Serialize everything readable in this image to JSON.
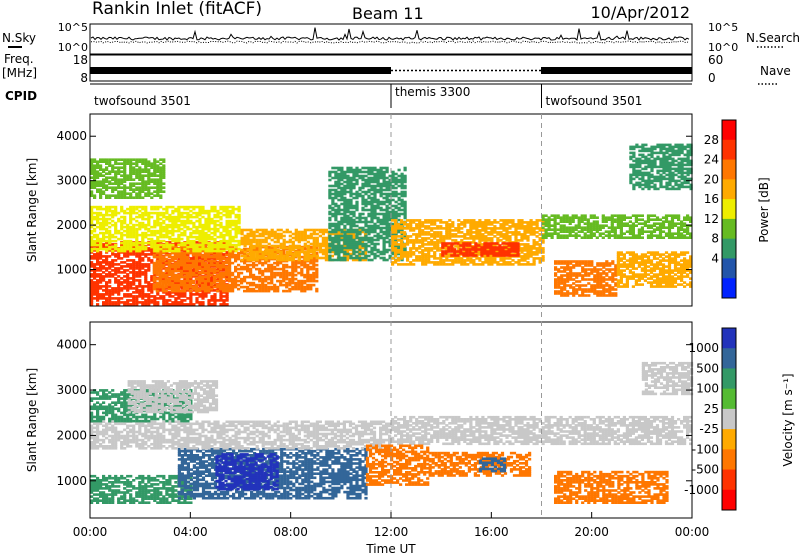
{
  "header": {
    "station": "Rankin Inlet (fitACF)",
    "beam": "Beam 11",
    "date": "10/Apr/2012"
  },
  "noise_panel": {
    "left_label": "N.Sky",
    "right_label": "N.Search",
    "left_ticks": [
      "10^5",
      "10^0"
    ],
    "right_ticks": [
      "10^5",
      "10^0"
    ]
  },
  "freq_panel": {
    "left_label": "Freq.",
    "left_unit": "[MHz]",
    "right_label": "Nave",
    "left_ticks": [
      "18",
      "8"
    ],
    "right_ticks": [
      "60",
      "0"
    ]
  },
  "cpid_panel": {
    "label": "CPID",
    "segments": [
      {
        "name": "twofsound 3501",
        "start_hour": 0,
        "end_hour": 12
      },
      {
        "name": "themis 3300",
        "start_hour": 12,
        "end_hour": 18
      },
      {
        "name": "twofsound 3501",
        "start_hour": 18,
        "end_hour": 24
      }
    ]
  },
  "x_axis": {
    "label": "Time UT",
    "ticks": [
      "00:00",
      "04:00",
      "08:00",
      "12:00",
      "16:00",
      "20:00",
      "00:00"
    ]
  },
  "chart_data": [
    {
      "type": "heatmap",
      "quantity": "Power",
      "colorbar_label": "Power [dB]",
      "colorbar_ticks": [
        "28",
        "24",
        "20",
        "16",
        "12",
        "8",
        "4"
      ],
      "colorbar_colors": [
        "#ff0000",
        "#ff3300",
        "#ff7700",
        "#ffaa00",
        "#eeee00",
        "#66bb22",
        "#339966",
        "#2255aa",
        "#0022ff"
      ],
      "ylabel": "Slant Range [km]",
      "yticks": [
        "4000",
        "3000",
        "2000",
        "1000"
      ],
      "ylim": [
        180,
        4500
      ],
      "xlim_hours": [
        0,
        24
      ],
      "regions": [
        {
          "t0": 0.0,
          "t1": 5.5,
          "r0": 200,
          "r1": 1600,
          "level": 28
        },
        {
          "t0": 2.5,
          "t1": 9.0,
          "r0": 500,
          "r1": 1500,
          "level": 24
        },
        {
          "t0": 0.0,
          "t1": 6.0,
          "r0": 1400,
          "r1": 2400,
          "level": 16
        },
        {
          "t0": 6.0,
          "t1": 11.0,
          "r0": 1200,
          "r1": 1900,
          "level": 20
        },
        {
          "t0": 9.5,
          "t1": 12.5,
          "r0": 1200,
          "r1": 3300,
          "level": 6
        },
        {
          "t0": 12.0,
          "t1": 18.0,
          "r0": 1100,
          "r1": 2100,
          "level": 20
        },
        {
          "t0": 14.0,
          "t1": 17.0,
          "r0": 1300,
          "r1": 1600,
          "level": 26
        },
        {
          "t0": 18.0,
          "t1": 24.0,
          "r0": 1700,
          "r1": 2200,
          "level": 12
        },
        {
          "t0": 18.5,
          "t1": 21.0,
          "r0": 400,
          "r1": 1200,
          "level": 24
        },
        {
          "t0": 21.0,
          "t1": 24.0,
          "r0": 600,
          "r1": 1400,
          "level": 20
        },
        {
          "t0": 0.0,
          "t1": 3.0,
          "r0": 2600,
          "r1": 3500,
          "level": 10
        },
        {
          "t0": 21.5,
          "t1": 24.0,
          "r0": 2800,
          "r1": 3800,
          "level": 8
        }
      ]
    },
    {
      "type": "heatmap",
      "quantity": "Velocity",
      "colorbar_label": "Velocity [m s⁻¹]",
      "colorbar_ticks": [
        "1000",
        "500",
        "100",
        "25",
        "-25",
        "-100",
        "-500",
        "-1000"
      ],
      "colorbar_colors": [
        "#2233bb",
        "#336699",
        "#339966",
        "#55bb33",
        "#c8c8c8",
        "#ffaa00",
        "#ff7700",
        "#ff3300",
        "#ff0000"
      ],
      "ylabel": "Slant Range [km]",
      "yticks": [
        "4000",
        "3000",
        "2000",
        "1000"
      ],
      "ylim": [
        180,
        4500
      ],
      "xlim_hours": [
        0,
        24
      ],
      "regions": [
        {
          "t0": 0.0,
          "t1": 4.0,
          "r0": 500,
          "r1": 1100,
          "level": 100
        },
        {
          "t0": 3.5,
          "t1": 11.0,
          "r0": 600,
          "r1": 1700,
          "level": 300
        },
        {
          "t0": 5.0,
          "t1": 7.5,
          "r0": 800,
          "r1": 1600,
          "level": 1000
        },
        {
          "t0": 0.0,
          "t1": 12.0,
          "r0": 1700,
          "r1": 2300,
          "level": 0
        },
        {
          "t0": 12.0,
          "t1": 24.0,
          "r0": 1800,
          "r1": 2400,
          "level": 0
        },
        {
          "t0": 11.0,
          "t1": 13.5,
          "r0": 900,
          "r1": 1800,
          "level": -300
        },
        {
          "t0": 13.5,
          "t1": 17.5,
          "r0": 1100,
          "r1": 1600,
          "level": -200
        },
        {
          "t0": 15.5,
          "t1": 16.5,
          "r0": 1200,
          "r1": 1500,
          "level": 700
        },
        {
          "t0": 18.5,
          "t1": 23.0,
          "r0": 500,
          "r1": 1200,
          "level": -300
        },
        {
          "t0": 0.0,
          "t1": 4.0,
          "r0": 2300,
          "r1": 3000,
          "level": 100
        },
        {
          "t0": 1.5,
          "t1": 5.0,
          "r0": 2500,
          "r1": 3200,
          "level": 0
        },
        {
          "t0": 22.0,
          "t1": 24.0,
          "r0": 2900,
          "r1": 3600,
          "level": 0
        }
      ]
    }
  ]
}
